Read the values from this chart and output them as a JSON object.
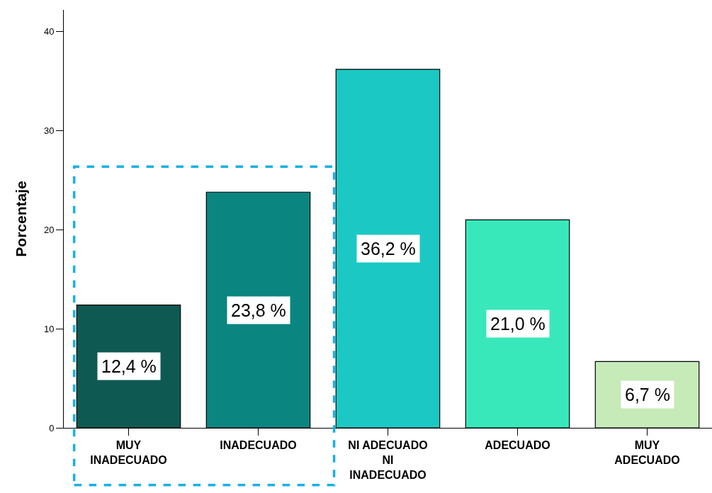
{
  "chart_data": {
    "type": "bar",
    "ylabel": "Porcentaje",
    "categories": [
      "MUY INADECUADO",
      "INADECUADO",
      "NI ADECUADO NI INADECUADO",
      "ADECUADO",
      "MUY ADECUADO"
    ],
    "values": [
      12.4,
      23.8,
      36.2,
      21.0,
      6.7
    ],
    "colors": [
      "#0e5a53",
      "#0b8580",
      "#1cc8c4",
      "#38e8bb",
      "#c6eab8"
    ],
    "value_labels": [
      "12,4 %",
      "23,8 %",
      "36,2 %",
      "21,0 %",
      "6,7 %"
    ],
    "ylim": [
      0,
      42.2
    ],
    "yticks": [
      0,
      10,
      20,
      30,
      40
    ]
  }
}
